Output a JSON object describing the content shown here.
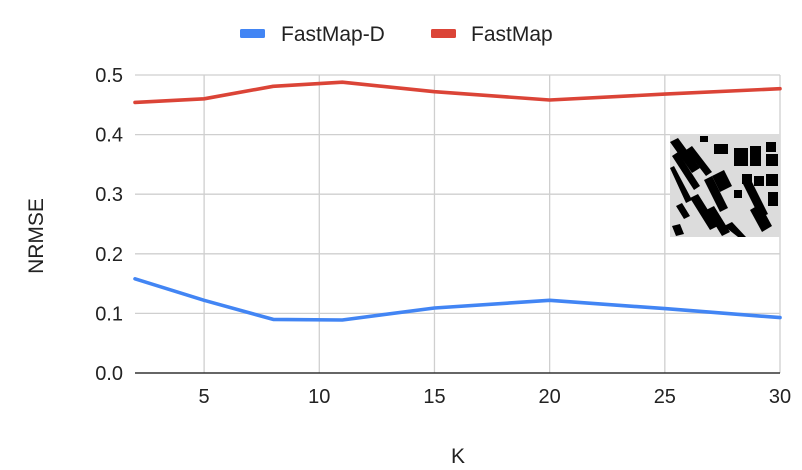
{
  "chart_data": {
    "type": "line",
    "xlabel": "K",
    "ylabel": "NRMSE",
    "x_ticks": [
      5,
      10,
      15,
      20,
      25,
      30
    ],
    "y_ticks": [
      "0.0",
      "0.1",
      "0.2",
      "0.3",
      "0.4",
      "0.5"
    ],
    "xlim": [
      2,
      30
    ],
    "ylim": [
      0,
      0.5
    ],
    "grid": true,
    "legend_position": "top-center",
    "x": [
      2,
      5,
      8,
      11,
      15,
      20,
      25,
      30
    ],
    "series": [
      {
        "name": "FastMap-D",
        "color": "#4285f4",
        "values": [
          0.158,
          0.122,
          0.09,
          0.089,
          0.109,
          0.122,
          0.108,
          0.093
        ]
      },
      {
        "name": "FastMap",
        "color": "#db4437",
        "values": [
          0.454,
          0.46,
          0.481,
          0.488,
          0.472,
          0.458,
          0.468,
          0.477
        ]
      }
    ],
    "inset_image": "black-and-white building map"
  }
}
